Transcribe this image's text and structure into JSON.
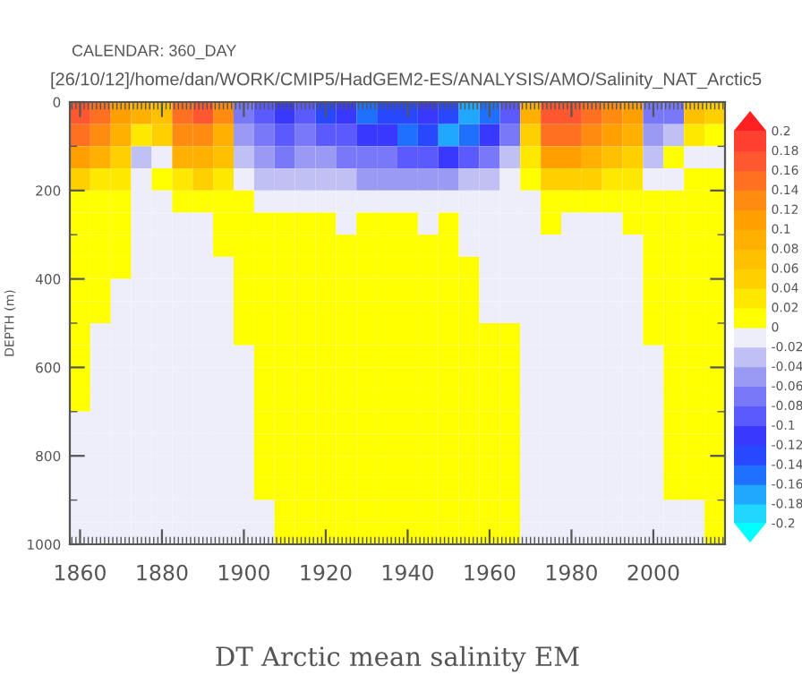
{
  "chart_data": {
    "type": "heatmap",
    "title": "DT Arctic mean salinity EM",
    "ylabel": "DEPTH (m)",
    "annotations": [
      "CALENDAR: 360_DAY",
      "[26/10/12]/home/dan/WORK/CMIP5/HadGEM2-ES/ANALYSIS/AMO/Salinity_NAT_Arctic5"
    ],
    "x": [
      1860,
      1865,
      1870,
      1875,
      1880,
      1885,
      1890,
      1895,
      1900,
      1905,
      1910,
      1915,
      1920,
      1925,
      1930,
      1935,
      1940,
      1945,
      1950,
      1955,
      1960,
      1965,
      1970,
      1975,
      1980,
      1985,
      1990,
      1995,
      2000,
      2005,
      2010,
      2015
    ],
    "xlim": [
      1857.5,
      2017.5
    ],
    "xticks": [
      1860,
      1880,
      1900,
      1920,
      1940,
      1960,
      1980,
      2000
    ],
    "ylim": [
      1000,
      0
    ],
    "yticks": [
      0,
      200,
      400,
      600,
      800,
      1000
    ],
    "clim": [
      -0.2,
      0.2
    ],
    "cticks": [
      0.2,
      0.18,
      0.16,
      0.14,
      0.12,
      0.1,
      0.08,
      0.06,
      0.04,
      0.02,
      0,
      -0.02,
      -0.04,
      -0.06,
      -0.08,
      -0.1,
      -0.12,
      -0.14,
      -0.16,
      -0.18,
      -0.2
    ],
    "cells": [
      [
        0.17,
        0.15,
        0.11,
        0.09,
        0.07,
        0.15,
        0.17,
        0.13,
        -0.07,
        -0.09,
        -0.11,
        -0.09,
        -0.13,
        -0.11,
        -0.15,
        -0.13,
        -0.13,
        -0.11,
        -0.13,
        -0.17,
        -0.15,
        -0.09,
        0.09,
        0.17,
        0.17,
        0.15,
        0.13,
        0.11,
        -0.07,
        -0.07,
        0.07,
        0.05
      ],
      [
        0.15,
        0.13,
        0.09,
        0.03,
        0.05,
        0.13,
        0.13,
        0.09,
        -0.05,
        -0.07,
        -0.09,
        -0.07,
        -0.09,
        -0.09,
        -0.11,
        -0.11,
        -0.15,
        -0.13,
        -0.17,
        -0.15,
        -0.11,
        -0.07,
        0.05,
        0.15,
        0.15,
        0.13,
        0.11,
        0.09,
        -0.05,
        -0.03,
        0.03,
        0.01
      ],
      [
        0.11,
        0.09,
        0.05,
        -0.03,
        -0.01,
        0.09,
        0.09,
        0.07,
        -0.03,
        -0.05,
        -0.07,
        -0.05,
        -0.05,
        -0.07,
        -0.07,
        -0.07,
        -0.09,
        -0.09,
        -0.11,
        -0.09,
        -0.07,
        -0.03,
        0.03,
        0.11,
        0.11,
        0.09,
        0.07,
        0.05,
        -0.03,
        0.01,
        -0.01,
        -0.01
      ],
      [
        0.05,
        0.03,
        0.03,
        -0.01,
        0.01,
        0.03,
        0.05,
        0.03,
        -0.01,
        -0.03,
        -0.03,
        -0.03,
        -0.03,
        -0.03,
        -0.05,
        -0.05,
        -0.05,
        -0.05,
        -0.05,
        -0.03,
        -0.03,
        -0.01,
        0.01,
        0.05,
        0.05,
        0.05,
        0.03,
        0.03,
        -0.01,
        -0.01,
        0.01,
        0.01
      ],
      [
        0.01,
        0.01,
        0.01,
        -0.01,
        -0.01,
        0.01,
        0.01,
        0.01,
        0.01,
        -0.01,
        -0.01,
        -0.01,
        -0.01,
        -0.01,
        -0.01,
        -0.01,
        -0.01,
        -0.01,
        -0.01,
        -0.01,
        -0.01,
        -0.01,
        -0.01,
        0.01,
        0.01,
        0.01,
        0.01,
        0.01,
        0.01,
        0.01,
        0.01,
        0.01
      ],
      [
        0.01,
        0.01,
        0.01,
        -0.01,
        -0.01,
        -0.01,
        -0.01,
        0.01,
        0.01,
        0.01,
        0.01,
        0.01,
        0.01,
        -0.01,
        0.01,
        0.01,
        0.01,
        -0.01,
        0.01,
        -0.01,
        -0.01,
        -0.01,
        -0.01,
        0.01,
        -0.01,
        -0.01,
        -0.01,
        0.01,
        0.01,
        0.01,
        0.01,
        0.01
      ],
      [
        0.01,
        0.01,
        0.01,
        -0.01,
        -0.01,
        -0.01,
        -0.01,
        0.01,
        0.01,
        0.01,
        0.01,
        0.01,
        0.01,
        0.01,
        0.01,
        0.01,
        0.01,
        0.01,
        0.01,
        -0.01,
        -0.01,
        -0.01,
        -0.01,
        -0.01,
        -0.01,
        -0.01,
        -0.01,
        -0.01,
        0.01,
        0.01,
        0.01,
        0.01
      ],
      [
        0.01,
        0.01,
        0.01,
        -0.01,
        -0.01,
        -0.01,
        -0.01,
        -0.01,
        0.01,
        0.01,
        0.01,
        0.01,
        0.01,
        0.01,
        0.01,
        0.01,
        0.01,
        0.01,
        0.01,
        0.01,
        -0.01,
        -0.01,
        -0.01,
        -0.01,
        -0.01,
        -0.01,
        -0.01,
        -0.01,
        0.01,
        0.01,
        0.01,
        0.01
      ],
      [
        0.01,
        0.01,
        -0.01,
        -0.01,
        -0.01,
        -0.01,
        -0.01,
        -0.01,
        0.01,
        0.01,
        0.01,
        0.01,
        0.01,
        0.01,
        0.01,
        0.01,
        0.01,
        0.01,
        0.01,
        0.01,
        -0.01,
        -0.01,
        -0.01,
        -0.01,
        -0.01,
        -0.01,
        -0.01,
        -0.01,
        0.01,
        0.01,
        0.01,
        0.01
      ],
      [
        0.01,
        0.01,
        -0.01,
        -0.01,
        -0.01,
        -0.01,
        -0.01,
        -0.01,
        0.01,
        0.01,
        0.01,
        0.01,
        0.01,
        0.01,
        0.01,
        0.01,
        0.01,
        0.01,
        0.01,
        0.01,
        -0.01,
        -0.01,
        -0.01,
        -0.01,
        -0.01,
        -0.01,
        -0.01,
        -0.01,
        0.01,
        0.01,
        0.01,
        0.01
      ],
      [
        0.01,
        -0.01,
        -0.01,
        -0.01,
        -0.01,
        -0.01,
        -0.01,
        -0.01,
        0.01,
        0.01,
        0.01,
        0.01,
        0.01,
        0.01,
        0.01,
        0.01,
        0.01,
        0.01,
        0.01,
        0.01,
        0.01,
        0.01,
        -0.01,
        -0.01,
        -0.01,
        -0.01,
        -0.01,
        -0.01,
        0.01,
        0.01,
        0.01,
        0.01
      ],
      [
        0.01,
        -0.01,
        -0.01,
        -0.01,
        -0.01,
        -0.01,
        -0.01,
        -0.01,
        -0.01,
        0.01,
        0.01,
        0.01,
        0.01,
        0.01,
        0.01,
        0.01,
        0.01,
        0.01,
        0.01,
        0.01,
        0.01,
        0.01,
        -0.01,
        -0.01,
        -0.01,
        -0.01,
        -0.01,
        -0.01,
        -0.01,
        0.01,
        0.01,
        0.01
      ],
      [
        0.01,
        -0.01,
        -0.01,
        -0.01,
        -0.01,
        -0.01,
        -0.01,
        -0.01,
        -0.01,
        0.01,
        0.01,
        0.01,
        0.01,
        0.01,
        0.01,
        0.01,
        0.01,
        0.01,
        0.01,
        0.01,
        0.01,
        0.01,
        -0.01,
        -0.01,
        -0.01,
        -0.01,
        -0.01,
        -0.01,
        -0.01,
        0.01,
        0.01,
        0.01
      ],
      [
        0.01,
        -0.01,
        -0.01,
        -0.01,
        -0.01,
        -0.01,
        -0.01,
        -0.01,
        -0.01,
        0.01,
        0.01,
        0.01,
        0.01,
        0.01,
        0.01,
        0.01,
        0.01,
        0.01,
        0.01,
        0.01,
        0.01,
        0.01,
        -0.01,
        -0.01,
        -0.01,
        -0.01,
        -0.01,
        -0.01,
        -0.01,
        0.01,
        0.01,
        0.01
      ],
      [
        -0.01,
        -0.01,
        -0.01,
        -0.01,
        -0.01,
        -0.01,
        -0.01,
        -0.01,
        -0.01,
        0.01,
        0.01,
        0.01,
        0.01,
        0.01,
        0.01,
        0.01,
        0.01,
        0.01,
        0.01,
        0.01,
        0.01,
        0.01,
        -0.01,
        -0.01,
        -0.01,
        -0.01,
        -0.01,
        -0.01,
        -0.01,
        0.01,
        0.01,
        0.01
      ],
      [
        -0.01,
        -0.01,
        -0.01,
        -0.01,
        -0.01,
        -0.01,
        -0.01,
        -0.01,
        -0.01,
        0.01,
        0.01,
        0.01,
        0.01,
        0.01,
        0.01,
        0.01,
        0.01,
        0.01,
        0.01,
        0.01,
        0.01,
        0.01,
        -0.01,
        -0.01,
        -0.01,
        -0.01,
        -0.01,
        -0.01,
        -0.01,
        0.01,
        0.01,
        0.01
      ],
      [
        -0.01,
        -0.01,
        -0.01,
        -0.01,
        -0.01,
        -0.01,
        -0.01,
        -0.01,
        -0.01,
        0.01,
        0.01,
        0.01,
        0.01,
        0.01,
        0.01,
        0.01,
        0.01,
        0.01,
        0.01,
        0.01,
        0.01,
        0.01,
        -0.01,
        -0.01,
        -0.01,
        -0.01,
        -0.01,
        -0.01,
        -0.01,
        0.01,
        0.01,
        0.01
      ],
      [
        -0.01,
        -0.01,
        -0.01,
        -0.01,
        -0.01,
        -0.01,
        -0.01,
        -0.01,
        -0.01,
        0.01,
        0.01,
        0.01,
        0.01,
        0.01,
        0.01,
        0.01,
        0.01,
        0.01,
        0.01,
        0.01,
        0.01,
        0.01,
        -0.01,
        -0.01,
        -0.01,
        -0.01,
        -0.01,
        -0.01,
        -0.01,
        0.01,
        0.01,
        0.01
      ],
      [
        -0.01,
        -0.01,
        -0.01,
        -0.01,
        -0.01,
        -0.01,
        -0.01,
        -0.01,
        -0.01,
        -0.01,
        0.01,
        0.01,
        0.01,
        0.01,
        0.01,
        0.01,
        0.01,
        0.01,
        0.01,
        0.01,
        0.01,
        0.01,
        -0.01,
        -0.01,
        -0.01,
        -0.01,
        -0.01,
        -0.01,
        -0.01,
        -0.01,
        -0.01,
        0.01
      ],
      [
        -0.01,
        -0.01,
        -0.01,
        -0.01,
        -0.01,
        -0.01,
        -0.01,
        -0.01,
        -0.01,
        -0.01,
        0.01,
        0.01,
        0.01,
        0.01,
        0.01,
        0.01,
        0.01,
        0.01,
        0.01,
        0.01,
        0.01,
        0.01,
        -0.01,
        -0.01,
        -0.01,
        -0.01,
        -0.01,
        -0.01,
        -0.01,
        -0.01,
        -0.01,
        0.01
      ]
    ]
  }
}
